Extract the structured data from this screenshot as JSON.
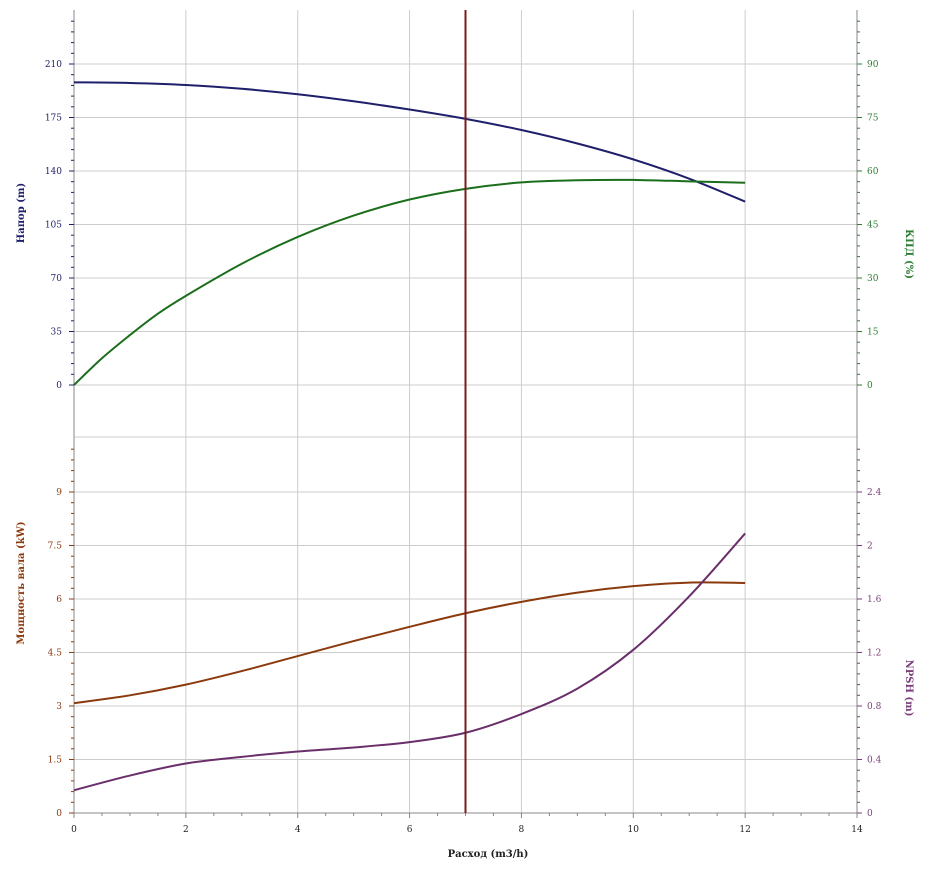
{
  "chart_data": {
    "type": "line",
    "xlabel": "Расход (m3/h)",
    "xlim": [
      0,
      14
    ],
    "x_ticks": [
      "0",
      "2",
      "4",
      "6",
      "8",
      "10",
      "12",
      "14"
    ],
    "duty_point_x": 7,
    "panels": [
      {
        "name": "top",
        "left_axis": {
          "label": "Напор (m)",
          "ylim": [
            0,
            245
          ],
          "ticks": [
            "0",
            "35",
            "70",
            "105",
            "140",
            "175",
            "210"
          ],
          "color": "#1f1f6b"
        },
        "right_axis": {
          "label": "КПД (%)",
          "ylim": [
            0,
            105
          ],
          "ticks": [
            "0",
            "15",
            "30",
            "45",
            "60",
            "75",
            "90"
          ],
          "color": "#2e7d32"
        },
        "series": [
          {
            "axis": "left",
            "color": "#1f1f6b",
            "x": [
              0,
              1,
              2,
              3,
              4,
              5,
              6,
              7,
              8,
              9,
              10,
              11,
              12
            ],
            "y": [
              198,
              197.6,
              196.3,
              193.8,
              190.2,
              185.6,
              180.2,
              174.1,
              166.8,
              158.0,
              147.6,
              135.0,
              120.0
            ]
          },
          {
            "axis": "right",
            "color": "#1b6e1b",
            "x": [
              0,
              0.5,
              1,
              1.5,
              2,
              3,
              4,
              5,
              6,
              7,
              8,
              9,
              10,
              11,
              12
            ],
            "y": [
              0,
              7.5,
              14,
              20,
              25,
              34,
              41.5,
              47.5,
              52,
              55,
              56.8,
              57.4,
              57.5,
              57.1,
              56.7
            ]
          }
        ]
      },
      {
        "name": "bottom",
        "left_axis": {
          "label": "Мощность вала (kW)",
          "ylim": [
            0,
            10.5
          ],
          "ticks": [
            "0",
            "1.5",
            "3",
            "4.5",
            "6",
            "7.5",
            "9"
          ],
          "color": "#8b3a0e"
        },
        "right_axis": {
          "label": "NPSH (m)",
          "ylim": [
            0,
            2.8
          ],
          "ticks": [
            "0",
            "0.4",
            "0.8",
            "1.2",
            "1.6",
            "2",
            "2.4"
          ],
          "color": "#7b3f7b"
        },
        "series": [
          {
            "axis": "left",
            "color": "#8b3a0e",
            "x": [
              0,
              1,
              2,
              3,
              4,
              5,
              6,
              7,
              8,
              9,
              10,
              11,
              12
            ],
            "y": [
              3.08,
              3.3,
              3.6,
              3.98,
              4.4,
              4.82,
              5.22,
              5.6,
              5.92,
              6.18,
              6.36,
              6.46,
              6.45
            ]
          },
          {
            "axis": "right",
            "color": "#6a2f6a",
            "x": [
              0,
              1,
              2,
              3,
              4,
              5,
              6,
              7,
              8,
              9,
              10,
              11,
              12
            ],
            "y": [
              0.17,
              0.28,
              0.37,
              0.42,
              0.46,
              0.49,
              0.53,
              0.6,
              0.74,
              0.93,
              1.22,
              1.62,
              2.09
            ]
          }
        ]
      }
    ]
  },
  "colors": {
    "grid": "#cccccc",
    "frame": "#888888",
    "duty_line": "#7a1c1c",
    "x_axis_title": "#222222"
  }
}
